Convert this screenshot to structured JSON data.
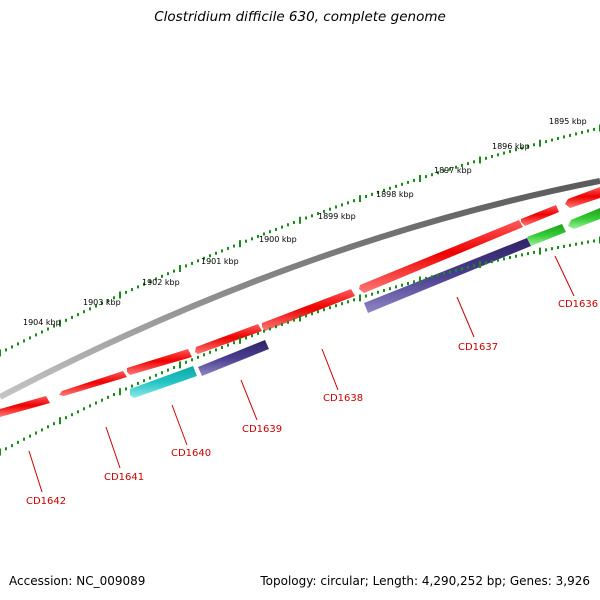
{
  "title": "Clostridium difficile 630, complete genome",
  "footer": {
    "accession": "Accession: NC_009089",
    "summary": "Topology: circular; Length: 4,290,252 bp; Genes: 3,926"
  },
  "kbp_labels": [
    "1895 kbp",
    "1896 kbp",
    "1897 kbp",
    "1898 kbp",
    "1899 kbp",
    "1900 kbp",
    "1901 kbp",
    "1902 kbp",
    "1903 kbp",
    "1904 kbp"
  ],
  "genes": [
    {
      "name": "CD1636",
      "color": "#33cc33"
    },
    {
      "name": "CD1637",
      "color": "#4b3d8f"
    },
    {
      "name": "CD1638",
      "color": "#ee0000"
    },
    {
      "name": "CD1639",
      "color": "#4b3d8f"
    },
    {
      "name": "CD1640",
      "color": "#22c4c4"
    },
    {
      "name": "CD1641",
      "color": "#ee0000"
    },
    {
      "name": "CD1642",
      "color": "#ee0000"
    }
  ],
  "colors": {
    "backbone": "#808080",
    "tick": "#1a8a1a",
    "label": "#cc0000",
    "cds_forward": "#ee0000"
  }
}
